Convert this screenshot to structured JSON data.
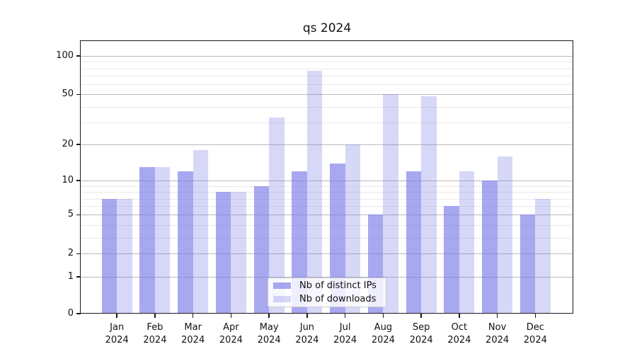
{
  "chart_data": {
    "type": "bar",
    "title": "qs 2024",
    "categories": [
      {
        "month": "Jan",
        "year": "2024"
      },
      {
        "month": "Feb",
        "year": "2024"
      },
      {
        "month": "Mar",
        "year": "2024"
      },
      {
        "month": "Apr",
        "year": "2024"
      },
      {
        "month": "May",
        "year": "2024"
      },
      {
        "month": "Jun",
        "year": "2024"
      },
      {
        "month": "Jul",
        "year": "2024"
      },
      {
        "month": "Aug",
        "year": "2024"
      },
      {
        "month": "Sep",
        "year": "2024"
      },
      {
        "month": "Oct",
        "year": "2024"
      },
      {
        "month": "Nov",
        "year": "2024"
      },
      {
        "month": "Dec",
        "year": "2024"
      }
    ],
    "series": [
      {
        "name": "Nb of distinct IPs",
        "color": "rgba(122,122,233,0.65)",
        "values": [
          7,
          13,
          12,
          8,
          9,
          12,
          14,
          5,
          12,
          6,
          10,
          5
        ]
      },
      {
        "name": "Nb of downloads",
        "color": "rgba(122,122,233,0.30)",
        "values": [
          7,
          13,
          18,
          8,
          33,
          77,
          20,
          50,
          48,
          12,
          16,
          7
        ]
      }
    ],
    "xlabel": "",
    "ylabel": "",
    "yscale": "log1p",
    "yticks": [
      0,
      1,
      2,
      5,
      10,
      20,
      50,
      100
    ],
    "minor_yticks": [
      3,
      4,
      6,
      7,
      8,
      9,
      30,
      40,
      60,
      70,
      80,
      90
    ],
    "ylim": [
      0,
      131
    ],
    "grid": true,
    "legend_position": "lower center",
    "colors": {
      "axis": "#1a1a1a",
      "grid_major": "#b9b9b9",
      "grid_minor": "#e9e9e9",
      "background": "#ffffff"
    }
  }
}
